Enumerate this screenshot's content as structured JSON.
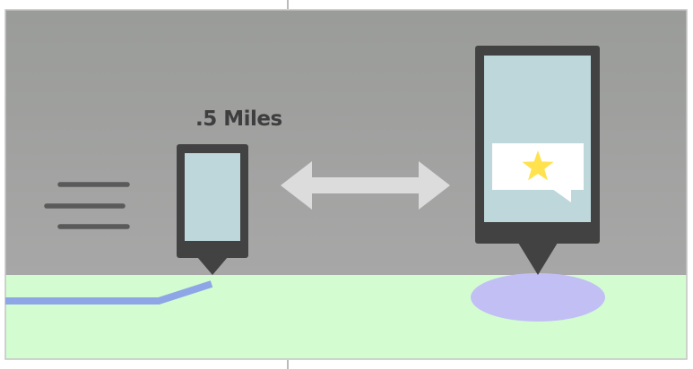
{
  "distance": {
    "label": ".5 Miles"
  },
  "colors": {
    "sky_top": "#9b9d9a",
    "sky_bottom": "#a6a6a6",
    "ground": "#d3fcd1",
    "device_frame": "#424242",
    "device_screen": "#bdd7db",
    "arrow": "#dcdcdc",
    "route": "#8ea6e6",
    "destination_area": "#c2bff5",
    "star": "#ffe24d",
    "bubble": "#ffffff",
    "motion_lines": "#5a5a5a",
    "border": "#c4c4c4"
  },
  "icons": {
    "motion": "speed-lines-icon",
    "arrow": "double-arrow-icon",
    "star": "star-icon",
    "pin": "map-pin-icon"
  }
}
